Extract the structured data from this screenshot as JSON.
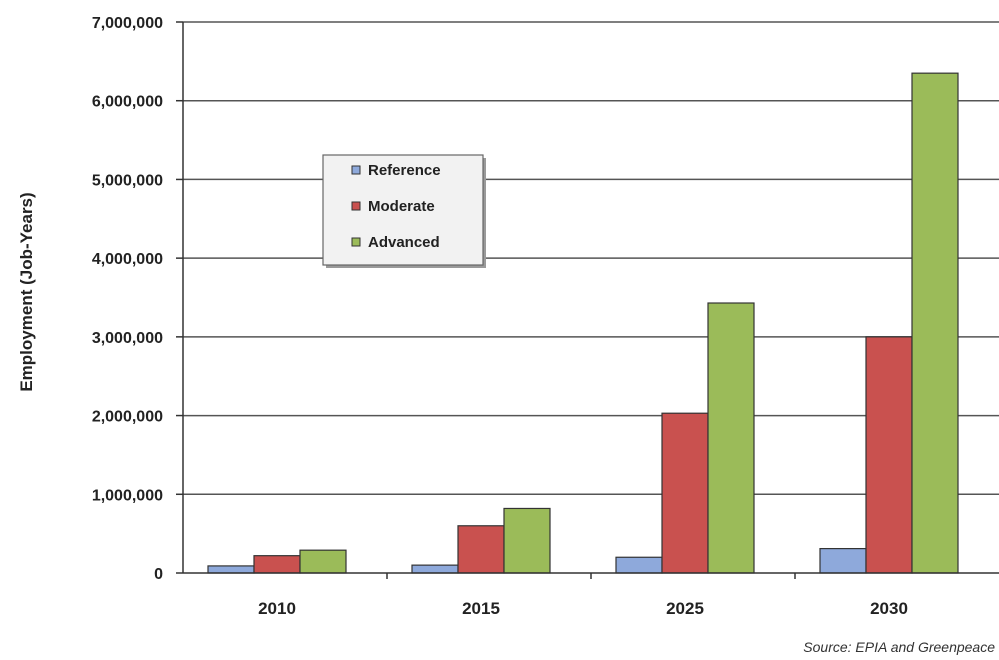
{
  "chart_data": {
    "type": "bar",
    "categories": [
      "2010",
      "2015",
      "2025",
      "2030"
    ],
    "series": [
      {
        "name": "Reference",
        "values": [
          90000,
          100000,
          200000,
          310000
        ]
      },
      {
        "name": "Moderate",
        "values": [
          220000,
          600000,
          2030000,
          3000000
        ]
      },
      {
        "name": "Advanced",
        "values": [
          290000,
          820000,
          3430000,
          6350000
        ]
      }
    ],
    "ylabel": "Employment (Job-Years)",
    "xlabel": "",
    "ylim": [
      0,
      7000000
    ],
    "yticks": [
      0,
      1000000,
      2000000,
      3000000,
      4000000,
      5000000,
      6000000,
      7000000
    ],
    "ytick_labels": [
      "0",
      "1,000,000",
      "2,000,000",
      "3,000,000",
      "4,000,000",
      "5,000,000",
      "6,000,000",
      "7,000,000"
    ],
    "grid": true,
    "legend_position": "upper-left inside plot",
    "source": "Source: EPIA and Greenpeace",
    "colors": {
      "Reference": "#8ea9db",
      "Moderate": "#c9514f",
      "Advanced": "#9bbb59"
    }
  }
}
